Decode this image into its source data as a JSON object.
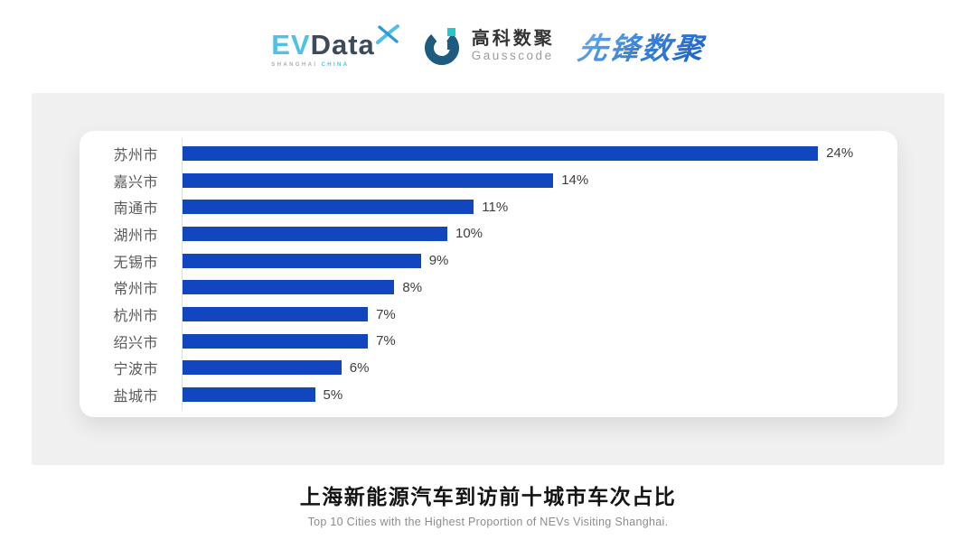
{
  "header": {
    "evdata": {
      "ev": "EV",
      "data": "Data",
      "sub_left": "SHANGHAI",
      "sub_right": "CHINA"
    },
    "gausscode": {
      "cn": "高科数聚",
      "en": "Gausscode"
    },
    "xianfeng": {
      "text": "先锋数聚"
    }
  },
  "chart_data": {
    "type": "bar",
    "orientation": "horizontal",
    "categories": [
      "苏州市",
      "嘉兴市",
      "南通市",
      "湖州市",
      "无锡市",
      "常州市",
      "杭州市",
      "绍兴市",
      "宁波市",
      "盐城市"
    ],
    "values": [
      24,
      14,
      11,
      10,
      9,
      8,
      7,
      7,
      6,
      5
    ],
    "value_suffix": "%",
    "value_labels": "end",
    "xlim": [
      0,
      25
    ],
    "grid": false,
    "legend": "none",
    "bar_color": "#1246BE",
    "title": "上海新能源汽车到访前十城市车次占比",
    "subtitle": "Top 10 Cities with the Highest Proportion of  NEVs Visiting Shanghai."
  },
  "footer": {
    "title": "上海新能源汽车到访前十城市车次占比",
    "subtitle": "Top 10 Cities with the Highest Proportion of  NEVs Visiting Shanghai."
  },
  "colors": {
    "bar": "#1246BE",
    "panel_bg": "#F0F0F0",
    "card_bg": "#FFFFFF",
    "axis_line": "#E1E1E1",
    "category_label": "#595959",
    "value_label": "#3D3D3D",
    "title": "#141414",
    "subtitle": "#8C8C8C",
    "evdata_blue": "#4FC1E9",
    "evdata_dark": "#3D4A5B",
    "gauss_dark": "#1E5B80",
    "gauss_teal": "#25C6CE",
    "xianfeng_blue": "#1A5FC8"
  }
}
